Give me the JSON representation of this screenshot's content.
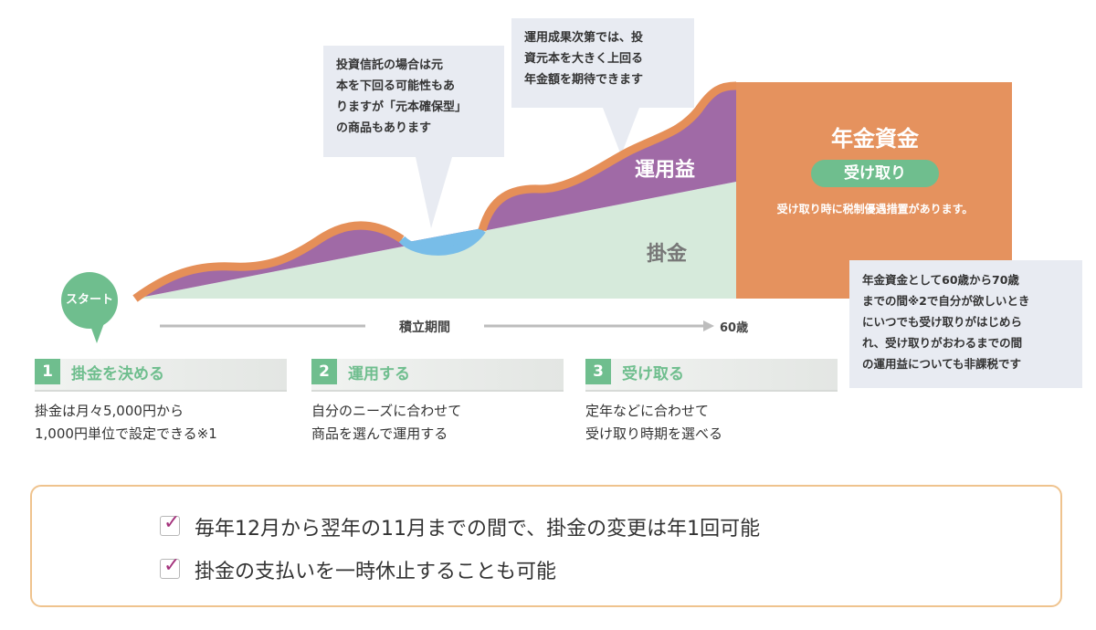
{
  "callouts": {
    "investment_trust": [
      "投資信託の場合は元",
      "本を下回る可能性もあ",
      "りますが「元本確保型」",
      "の商品もあります"
    ],
    "returns": [
      "運用成果次第では、投",
      "資元本を大きく上回る",
      "年金額を期待できます"
    ],
    "tax_exempt": [
      "年金資金として60歳から70歳",
      "までの間※2で自分が欲しいとき",
      "にいつでも受け取りがはじめら",
      "れ、受け取りがおわるまでの間",
      "の運用益についても非課税です"
    ]
  },
  "diagram": {
    "start_label": "スタート",
    "profit_label": "運用益",
    "contribution_label": "掛金",
    "fund_title": "年金資金",
    "receive_label": "受け取り",
    "tax_note": "受け取り時に税制優遇措置があります。",
    "period_label": "積立期間",
    "age_label": "60歳",
    "colors": {
      "profit": "#a06aa6",
      "contribution": "#d6eadb",
      "loss": "#78bde8",
      "outline": "#e58f58",
      "fund": "#e5925e",
      "green": "#6fbe8e"
    }
  },
  "steps": [
    {
      "number": "1",
      "title": "掛金を決める",
      "desc": [
        "掛金は月々5,000円から",
        "1,000円単位で設定できる※1"
      ]
    },
    {
      "number": "2",
      "title": "運用する",
      "desc": [
        "自分のニーズに合わせて",
        "商品を選んで運用する"
      ]
    },
    {
      "number": "3",
      "title": "受け取る",
      "desc": [
        "定年などに合わせて",
        "受け取り時期を選べる"
      ]
    }
  ],
  "notes": [
    "毎年12月から翌年の11月までの間で、掛金の変更は年1回可能",
    "掛金の支払いを一時休止することも可能"
  ],
  "check_icon": "check-icon"
}
